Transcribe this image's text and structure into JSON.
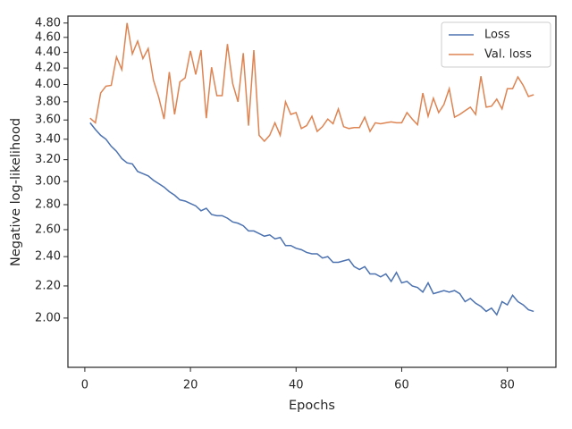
{
  "chart_data": {
    "type": "line",
    "xlabel": "Epochs",
    "ylabel": "Negative log-likelihood",
    "x": [
      1,
      2,
      3,
      4,
      5,
      6,
      7,
      8,
      9,
      10,
      11,
      12,
      13,
      14,
      15,
      16,
      17,
      18,
      19,
      20,
      21,
      22,
      23,
      24,
      25,
      26,
      27,
      28,
      29,
      30,
      31,
      32,
      33,
      34,
      35,
      36,
      37,
      38,
      39,
      40,
      41,
      42,
      43,
      44,
      45,
      46,
      47,
      48,
      49,
      50,
      51,
      52,
      53,
      54,
      55,
      56,
      57,
      58,
      59,
      60,
      61,
      62,
      63,
      64,
      65,
      66,
      67,
      68,
      69,
      70,
      71,
      72,
      73,
      74,
      75,
      76,
      77,
      78,
      79,
      80,
      81,
      82,
      83,
      84,
      85
    ],
    "series": [
      {
        "name": "Loss",
        "color": "#4c72b0",
        "values": [
          3.57,
          3.5,
          3.44,
          3.4,
          3.33,
          3.28,
          3.21,
          3.17,
          3.16,
          3.09,
          3.07,
          3.05,
          3.01,
          2.98,
          2.95,
          2.91,
          2.88,
          2.84,
          2.83,
          2.81,
          2.79,
          2.75,
          2.77,
          2.72,
          2.71,
          2.71,
          2.69,
          2.66,
          2.65,
          2.63,
          2.59,
          2.59,
          2.57,
          2.55,
          2.56,
          2.53,
          2.54,
          2.48,
          2.48,
          2.46,
          2.45,
          2.43,
          2.42,
          2.42,
          2.39,
          2.4,
          2.36,
          2.36,
          2.37,
          2.38,
          2.33,
          2.31,
          2.33,
          2.28,
          2.28,
          2.26,
          2.28,
          2.23,
          2.29,
          2.22,
          2.23,
          2.2,
          2.19,
          2.16,
          2.22,
          2.15,
          2.16,
          2.17,
          2.16,
          2.17,
          2.15,
          2.1,
          2.12,
          2.09,
          2.07,
          2.04,
          2.06,
          2.02,
          2.1,
          2.08,
          2.14,
          2.1,
          2.08,
          2.05,
          2.04
        ]
      },
      {
        "name": "Val. loss",
        "color": "#dd8452",
        "values": [
          3.62,
          3.57,
          3.9,
          3.98,
          3.99,
          4.34,
          4.18,
          4.8,
          4.38,
          4.55,
          4.32,
          4.45,
          4.05,
          3.85,
          3.61,
          4.15,
          3.66,
          4.03,
          4.08,
          4.42,
          4.12,
          4.43,
          3.62,
          4.21,
          3.87,
          3.87,
          4.51,
          4.01,
          3.8,
          4.39,
          3.54,
          4.43,
          3.44,
          3.38,
          3.44,
          3.57,
          3.44,
          3.8,
          3.66,
          3.68,
          3.51,
          3.54,
          3.64,
          3.48,
          3.53,
          3.61,
          3.56,
          3.72,
          3.53,
          3.51,
          3.52,
          3.52,
          3.63,
          3.48,
          3.57,
          3.56,
          3.57,
          3.58,
          3.57,
          3.57,
          3.68,
          3.61,
          3.55,
          3.9,
          3.64,
          3.84,
          3.68,
          3.77,
          3.95,
          3.63,
          3.66,
          3.7,
          3.74,
          3.66,
          4.1,
          3.74,
          3.75,
          3.83,
          3.72,
          3.95,
          3.95,
          4.09,
          3.99,
          3.86,
          3.88
        ]
      }
    ],
    "xlim": [
      -3.2,
      89.2
    ],
    "xticks": [
      0,
      20,
      40,
      60,
      80
    ],
    "ylim": [
      1.728,
      4.9
    ],
    "yscale": "log",
    "yticks": [
      {
        "value": 2,
        "label": "2.00"
      },
      {
        "value": 2.2,
        "label": "2.20"
      },
      {
        "value": 2.4,
        "label": "2.40"
      },
      {
        "value": 2.6,
        "label": "2.60"
      },
      {
        "value": 2.8,
        "label": "2.80"
      },
      {
        "value": 3,
        "label": "3.00"
      },
      {
        "value": 3.2,
        "label": "3.20"
      },
      {
        "value": 3.4,
        "label": "3.40"
      },
      {
        "value": 3.6,
        "label": "3.60"
      },
      {
        "value": 3.8,
        "label": "3.80"
      },
      {
        "value": 4,
        "label": "4.00"
      },
      {
        "value": 4.2,
        "label": "4.20"
      },
      {
        "value": 4.4,
        "label": "4.40"
      },
      {
        "value": 4.6,
        "label": "4.60"
      },
      {
        "value": 4.8,
        "label": "4.80"
      }
    ],
    "grid": false,
    "legend": "upper right"
  }
}
